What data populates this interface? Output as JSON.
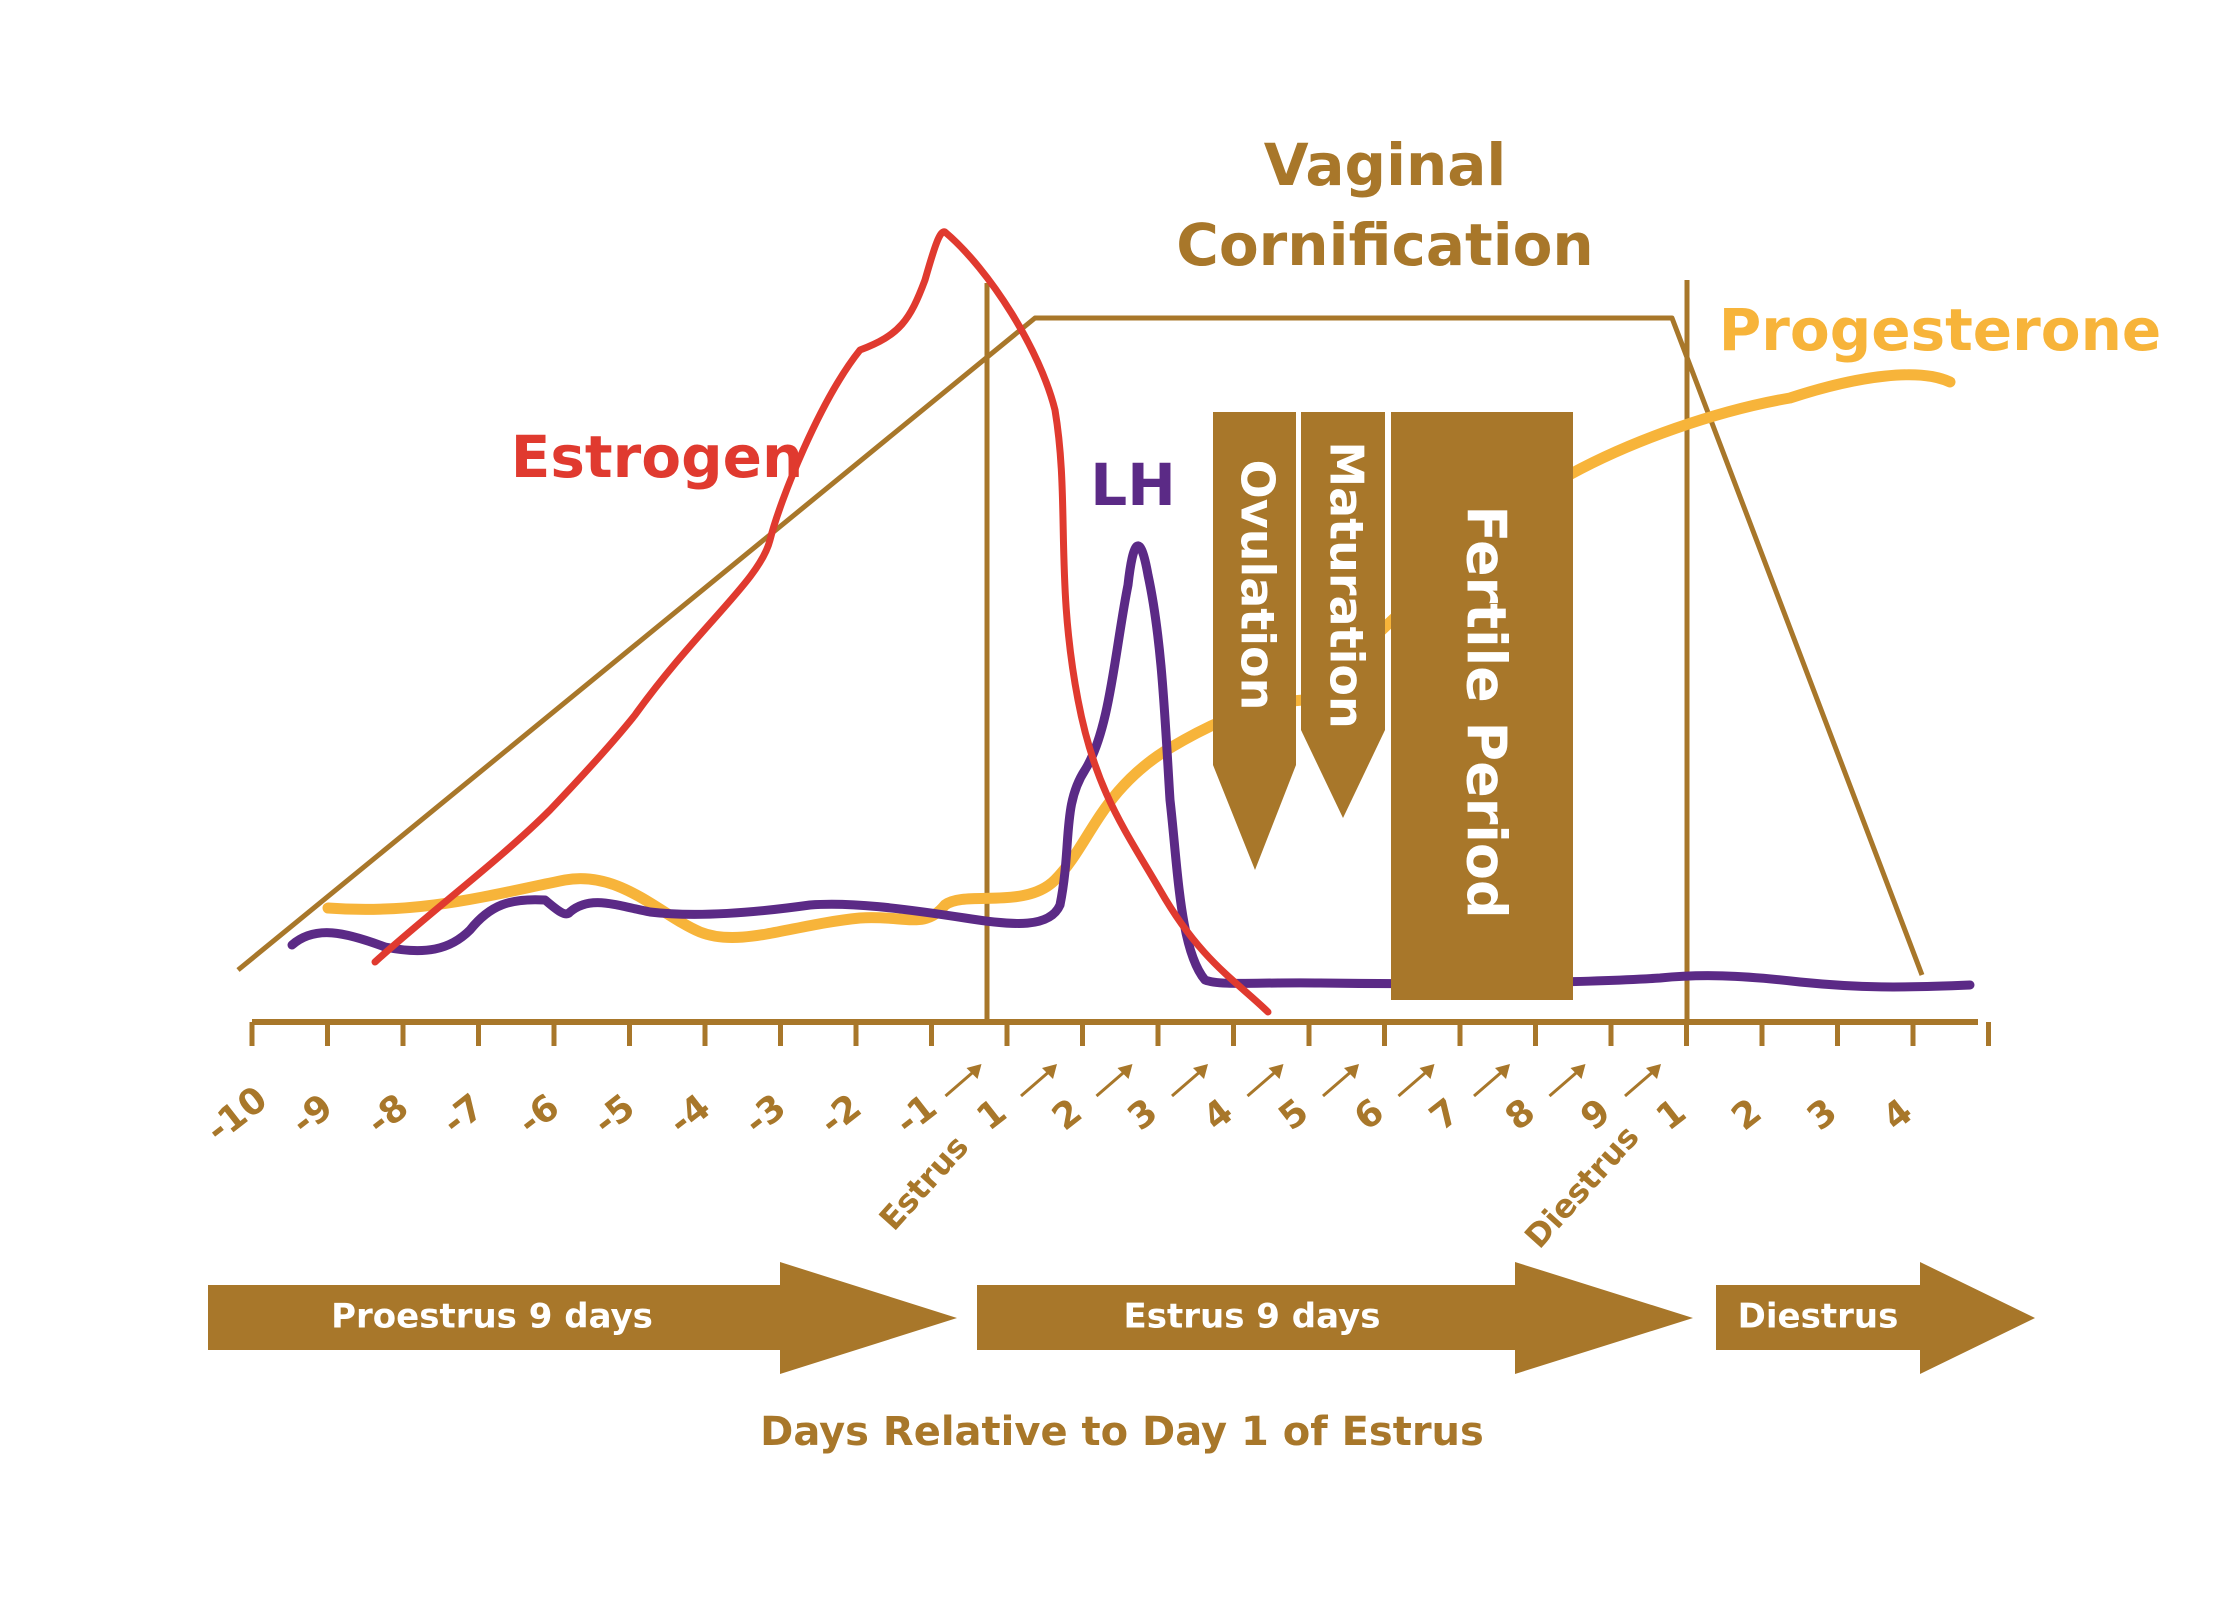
{
  "colors": {
    "gold": "#a8772a",
    "estrogen": "#e03a2f",
    "lh": "#5b2a86",
    "progesterone": "#f7b43a",
    "white": "#ffffff"
  },
  "labels": {
    "cornification_line1": "Vaginal",
    "cornification_line2": "Cornification",
    "estrogen": "Estrogen",
    "lh": "LH",
    "progesterone": "Progesterone",
    "ovulation": "Ovulation",
    "maturation": "Maturation",
    "fertile_period": "Fertile Period",
    "estrus_marker": "Estrus",
    "diestrus_marker": "Diestrus",
    "x_axis_title": "Days Relative to Day 1 of Estrus"
  },
  "ticks": {
    "proestrus": [
      "-10",
      "-9",
      "-8",
      "-7",
      "-6",
      "-5",
      "-4",
      "-3",
      "-2",
      "-1"
    ],
    "estrus": [
      "1",
      "2",
      "3",
      "4",
      "5",
      "6",
      "7",
      "8",
      "9"
    ],
    "diestrus": [
      "1",
      "2",
      "3",
      "4"
    ]
  },
  "phases": [
    {
      "label": "Proestrus 9 days"
    },
    {
      "label": "Estrus 9 days"
    },
    {
      "label": "Diestrus"
    }
  ]
}
